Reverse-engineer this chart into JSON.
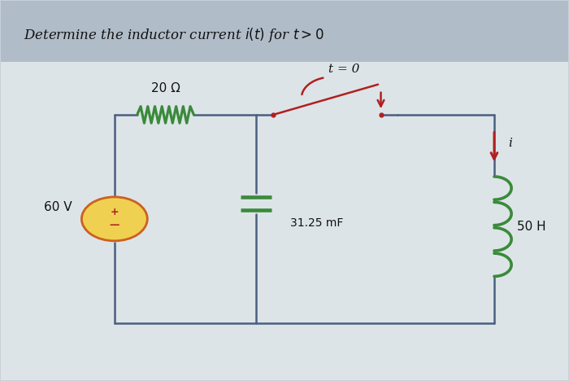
{
  "title": "Determine the inductor current $i(t)$ for $t > 0$",
  "title_fontsize": 12,
  "bg_color": "#c8d0d8",
  "inner_bg_color": "#dde4e8",
  "circuit_color": "#4a6080",
  "resistor_color": "#3a8a3a",
  "inductor_color": "#3a8a3a",
  "capacitor_color": "#3a8a3a",
  "switch_color": "#b02020",
  "source_fill": "#f0d050",
  "source_border": "#cc6020",
  "source_plus_color": "#b02020",
  "source_minus_color": "#b02020",
  "text_color": "#111111",
  "voltage_label": "60 V",
  "resistor_label": "20 Ω",
  "capacitor_label": "31.25 mF",
  "inductor_label": "50 H",
  "switch_label": "t = 0",
  "current_label": "i",
  "circuit_lw": 1.8,
  "L": 0.2,
  "R": 0.87,
  "T": 0.7,
  "B": 0.15,
  "M1": 0.45,
  "M2": 0.7
}
